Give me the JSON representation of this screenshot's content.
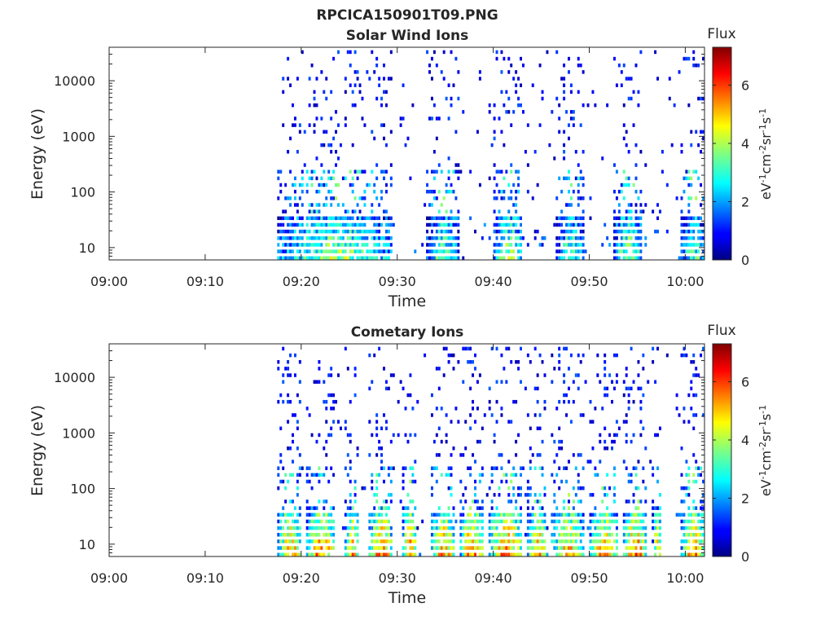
{
  "figure": {
    "title": "RPCICA150901T09.PNG"
  },
  "chart_data": [
    {
      "type": "heatmap",
      "title": "Solar Wind Ions",
      "xlabel": "Time",
      "ylabel": "Energy (eV)",
      "y_scale": "log",
      "ylim": [
        6,
        40000
      ],
      "xlim": [
        "09:00",
        "10:02"
      ],
      "x_ticks": [
        "09:00",
        "09:10",
        "09:20",
        "09:30",
        "09:40",
        "09:50",
        "10:00"
      ],
      "y_ticks": [
        "10",
        "100",
        "1000",
        "10000"
      ],
      "colorbar": {
        "title": "Flux",
        "label": "eV-1cm-2sr-1s-1",
        "colormap": "jet",
        "range": [
          0,
          7.3
        ],
        "ticks": [
          "0",
          "2",
          "4",
          "6"
        ]
      },
      "data_start": "09:17:30",
      "bursts": [
        {
          "start": "09:17:30",
          "end": "09:29:30",
          "low_energy_flux": 4.5,
          "peak_flux": 5.0
        },
        {
          "start": "09:33:00",
          "end": "09:36:30",
          "low_energy_flux": 4.3,
          "peak_flux": 4.5
        },
        {
          "start": "09:40:00",
          "end": "09:43:00",
          "low_energy_flux": 4.8,
          "peak_flux": 5.0
        },
        {
          "start": "09:46:30",
          "end": "09:49:30",
          "low_energy_flux": 4.3,
          "peak_flux": 4.5
        },
        {
          "start": "09:52:30",
          "end": "09:55:30",
          "low_energy_flux": 4.5,
          "peak_flux": 5.0
        },
        {
          "start": "09:59:30",
          "end": "10:02:00",
          "low_energy_flux": 4.3,
          "peak_flux": 4.5
        }
      ],
      "grid": false
    },
    {
      "type": "heatmap",
      "title": "Cometary Ions",
      "xlabel": "Time",
      "ylabel": "Energy (eV)",
      "y_scale": "log",
      "ylim": [
        6,
        40000
      ],
      "xlim": [
        "09:00",
        "10:02"
      ],
      "x_ticks": [
        "09:00",
        "09:10",
        "09:20",
        "09:30",
        "09:40",
        "09:50",
        "10:00"
      ],
      "y_ticks": [
        "10",
        "100",
        "1000",
        "10000"
      ],
      "colorbar": {
        "title": "Flux",
        "label": "eV-1cm-2sr-1s-1",
        "colormap": "jet",
        "range": [
          0,
          7.3
        ],
        "ticks": [
          "0",
          "2",
          "4",
          "6"
        ]
      },
      "data_start": "09:17:30",
      "bursts": [
        {
          "start": "09:17:30",
          "end": "09:20:00",
          "low_energy_flux": 6.0,
          "peak_flux": 6.5
        },
        {
          "start": "09:20:30",
          "end": "09:23:30",
          "low_energy_flux": 6.3,
          "peak_flux": 6.8
        },
        {
          "start": "09:24:30",
          "end": "09:26:00",
          "low_energy_flux": 5.8,
          "peak_flux": 6.3
        },
        {
          "start": "09:27:00",
          "end": "09:29:30",
          "low_energy_flux": 6.3,
          "peak_flux": 6.8
        },
        {
          "start": "09:30:30",
          "end": "09:32:00",
          "low_energy_flux": 6.3,
          "peak_flux": 6.8
        },
        {
          "start": "09:33:30",
          "end": "09:36:00",
          "low_energy_flux": 6.0,
          "peak_flux": 6.5
        },
        {
          "start": "09:36:30",
          "end": "09:39:00",
          "low_energy_flux": 6.3,
          "peak_flux": 6.8
        },
        {
          "start": "09:39:30",
          "end": "09:43:00",
          "low_energy_flux": 6.3,
          "peak_flux": 6.8
        },
        {
          "start": "09:43:30",
          "end": "09:45:30",
          "low_energy_flux": 6.0,
          "peak_flux": 6.5
        },
        {
          "start": "09:46:00",
          "end": "09:49:30",
          "low_energy_flux": 5.8,
          "peak_flux": 6.3
        },
        {
          "start": "09:50:00",
          "end": "09:53:00",
          "low_energy_flux": 6.0,
          "peak_flux": 6.5
        },
        {
          "start": "09:53:30",
          "end": "09:56:00",
          "low_energy_flux": 6.3,
          "peak_flux": 6.8
        },
        {
          "start": "09:56:30",
          "end": "09:57:30",
          "low_energy_flux": 5.5,
          "peak_flux": 6.0
        },
        {
          "start": "09:59:30",
          "end": "10:02:00",
          "low_energy_flux": 6.0,
          "peak_flux": 6.5
        }
      ],
      "grid": false
    }
  ]
}
